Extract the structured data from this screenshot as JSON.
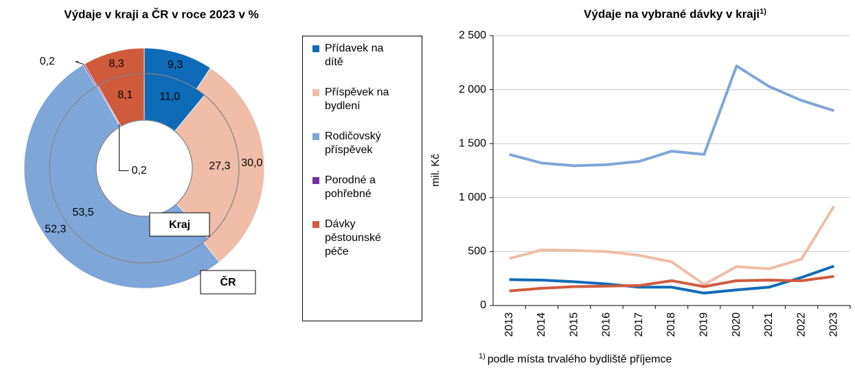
{
  "chart_data": [
    {
      "type": "donut",
      "title": "Výdaje v kraji a ČR v roce 2023 v %",
      "categories": [
        "Přídavek na dítě",
        "Příspěvek na bydlení",
        "Rodičovský příspěvek",
        "Porodné a pohřebné",
        "Dávky pěstounské péče"
      ],
      "colors": [
        "#0e6bb8",
        "#efbda8",
        "#7fa6d9",
        "#7030a0",
        "#d05a3c"
      ],
      "series": [
        {
          "name": "Kraj",
          "ring": "inner",
          "values": [
            11.0,
            27.3,
            53.5,
            0.2,
            8.1
          ],
          "value_labels": [
            "11,0",
            "27,3",
            "53,5",
            "0,2",
            "8,1"
          ]
        },
        {
          "name": "ČR",
          "ring": "outer",
          "values": [
            9.3,
            30.0,
            52.3,
            0.2,
            8.3
          ],
          "value_labels": [
            "9,3",
            "30,0",
            "52,3",
            "0,2",
            "8,3"
          ]
        }
      ]
    },
    {
      "type": "line",
      "title": "Výdaje na vybrané dávky v kraji",
      "title_note": "1)",
      "ylabel": "mil. Kč",
      "footnote": "podle místa trvalého bydliště příjemce",
      "categories": [
        "2013",
        "2014",
        "2015",
        "2016",
        "2017",
        "2018",
        "2019",
        "2020",
        "2021",
        "2022",
        "2023"
      ],
      "ylim": [
        0,
        2500
      ],
      "yticks": [
        0,
        500,
        {
          "value": 1000,
          "label": "1 000"
        },
        {
          "value": 1500,
          "label": "1 500"
        },
        {
          "value": 2000,
          "label": "2 000"
        },
        {
          "value": 2500,
          "label": "2 500"
        }
      ],
      "grid": true,
      "series": [
        {
          "color": "#7fa6d9",
          "values": [
            1400,
            1320,
            1295,
            1305,
            1335,
            1430,
            1400,
            2220,
            2030,
            1900,
            1805
          ]
        },
        {
          "color": "#efbda8",
          "values": [
            435,
            515,
            510,
            500,
            465,
            405,
            195,
            360,
            340,
            430,
            920
          ]
        },
        {
          "color": "#0e6bb8",
          "values": [
            240,
            235,
            220,
            200,
            170,
            170,
            115,
            145,
            170,
            260,
            365
          ]
        },
        {
          "color": "#d05a3c",
          "values": [
            135,
            160,
            175,
            180,
            185,
            230,
            175,
            230,
            235,
            230,
            270
          ]
        }
      ]
    }
  ]
}
